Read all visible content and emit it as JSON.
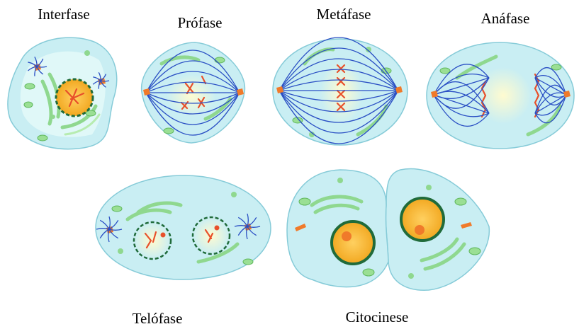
{
  "phases": [
    {
      "label": "Interfase"
    },
    {
      "label": "Prófase"
    },
    {
      "label": "Metáfase"
    },
    {
      "label": "Anáfase"
    },
    {
      "label": "Telófase"
    },
    {
      "label": "Citocinese"
    }
  ]
}
